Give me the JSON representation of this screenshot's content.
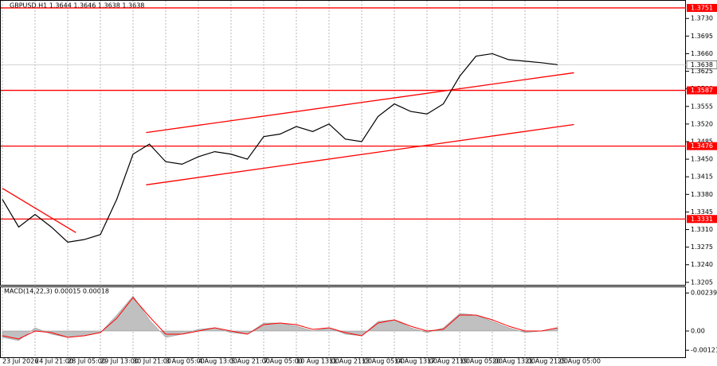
{
  "chart_data": [
    {
      "type": "line",
      "title": "GBPUSD,H1 1.3644 1.3646 1.3638 1.3638",
      "categories": [
        "23 Jul 2026",
        null,
        "24 Jul 21:00",
        null,
        "28 Jul 05:00",
        null,
        "29 Jul 13:00",
        null,
        "30 Jul 21:00",
        null,
        "3 Aug 05:00",
        null,
        "4 Aug 13:00",
        null,
        "5 Aug 21:00",
        null,
        "7 Aug 05:00",
        null,
        "10 Aug 13:00",
        null,
        "11 Aug 21:00",
        null,
        "13 Aug 05:00",
        null,
        "14 Aug 13:00",
        null,
        "17 Aug 21:00",
        null,
        "19 Aug 05:00",
        null,
        "20 Aug 13:00",
        null,
        "21 Aug 21:00",
        null,
        "25 Aug 05:00"
      ],
      "values": [
        1.337,
        1.3315,
        1.334,
        1.3315,
        1.3285,
        1.329,
        1.33,
        1.337,
        1.346,
        1.348,
        1.3445,
        1.344,
        1.3455,
        1.3465,
        1.346,
        1.345,
        1.3495,
        1.35,
        1.3515,
        1.3505,
        1.352,
        1.349,
        1.3485,
        1.3535,
        1.356,
        1.3545,
        1.354,
        1.356,
        1.3615,
        1.3655,
        1.366,
        1.3648,
        1.3645,
        1.3642,
        1.3638
      ],
      "color": "#000000",
      "ylim": [
        1.32,
        1.3762
      ],
      "yticks": [
        {
          "value": 1.373,
          "label": "1.3730"
        },
        1.3695,
        {
          "value": 1.366,
          "label": "1.3660"
        },
        1.3625,
        {
          "value": 1.359,
          "label": "1.3590"
        },
        1.3555,
        {
          "value": 1.352,
          "label": "1.3520"
        },
        1.3485,
        {
          "value": 1.345,
          "label": "1.3450"
        },
        1.3415,
        {
          "value": 1.338,
          "label": "1.3380"
        },
        1.3345,
        {
          "value": 1.331,
          "label": "1.3310"
        },
        1.3275,
        {
          "value": 1.324,
          "label": "1.3240"
        },
        1.3205
      ],
      "levels": [
        1.3751,
        1.3587,
        1.3476,
        1.3331
      ],
      "level_color": "#ff0000",
      "current_price": 1.3638,
      "trendlines": [
        {
          "x": [
            8.8,
            35
          ],
          "y": [
            1.3503,
            1.3622
          ]
        },
        {
          "x": [
            8.8,
            35
          ],
          "y": [
            1.3399,
            1.3519
          ]
        },
        {
          "x": [
            0,
            4.5
          ],
          "y": [
            1.3392,
            1.3304
          ]
        }
      ]
    },
    {
      "type": "macd",
      "title": "MACD(14,22,3) 0.00015 0.00018",
      "values": [
        -0.0004,
        -0.0006,
        0.0002,
        -0.0002,
        -0.0004,
        -0.0003,
        -0.0001,
        0.001,
        0.0022,
        0.0007,
        -0.0004,
        -0.0002,
        0.0001,
        0.0002,
        -0.0001,
        -0.0002,
        0.0005,
        0.0005,
        0.0003,
        0,
        0.0002,
        -0.0002,
        -0.0003,
        0.0006,
        0.0007,
        0.0002,
        -0.0001,
        0.0002,
        0.0011,
        0.001,
        0.0006,
        0.0002,
        -0.0001,
        0,
        0.0002
      ],
      "signal": [
        -0.0003,
        -0.0005,
        0,
        -0.0001,
        -0.0004,
        -0.0003,
        -0.0001,
        0.0008,
        0.0021,
        0.0009,
        -0.0002,
        -0.0002,
        0,
        0.0002,
        0,
        -0.0002,
        0.0004,
        0.0005,
        0.0004,
        0.0001,
        0.0002,
        -0.0001,
        -0.0003,
        0.0005,
        0.0007,
        0.0003,
        0,
        0.0001,
        0.001,
        0.001,
        0.0007,
        0.0003,
        0,
        0,
        0.0002
      ],
      "color": "#c0c0c0",
      "signal_color": "#ff0000",
      "ylim": [
        -0.0017,
        0.0027
      ],
      "yticks": [
        0.00239,
        {
          "value": 0,
          "label": "0.00"
        },
        -0.00121
      ]
    }
  ]
}
